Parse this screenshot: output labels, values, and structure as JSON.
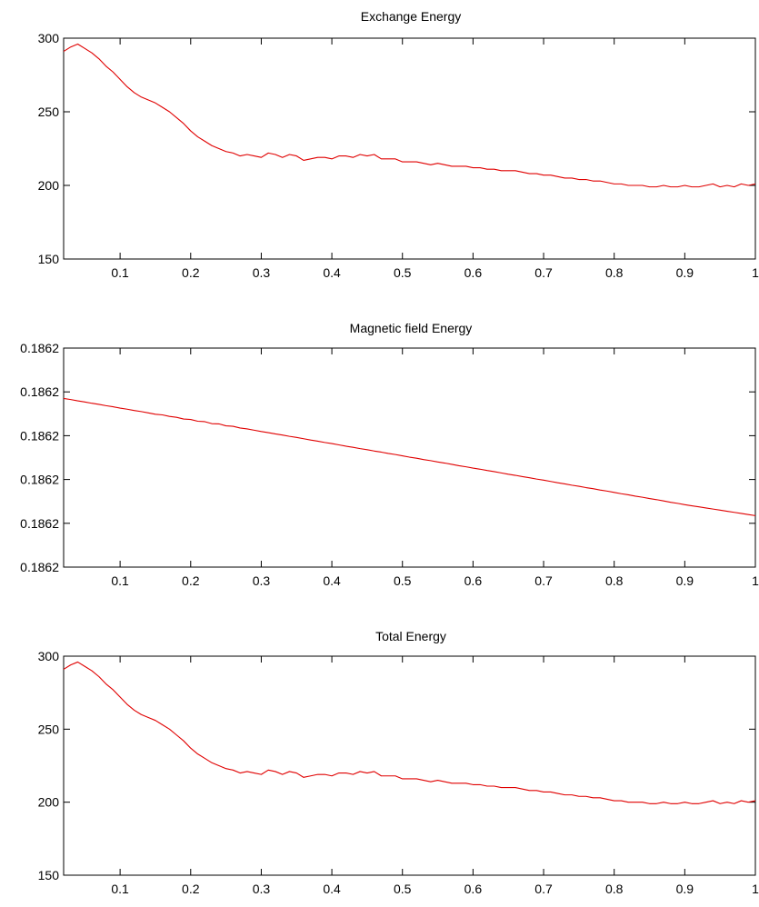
{
  "figure": {
    "line_color": "#e00000",
    "background": "#ffffff"
  },
  "chart_data": [
    {
      "type": "line",
      "title": "Exchange Energy",
      "xlim": [
        0.02,
        1.0
      ],
      "ylim": [
        150,
        300
      ],
      "xticks": [
        0.1,
        0.2,
        0.3,
        0.4,
        0.5,
        0.6,
        0.7,
        0.8,
        0.9,
        1.0
      ],
      "xtick_labels": [
        "0.1",
        "0.2",
        "0.3",
        "0.4",
        "0.5",
        "0.6",
        "0.7",
        "0.8",
        "0.9",
        "1"
      ],
      "yticks": [
        150,
        200,
        250,
        300
      ],
      "ytick_labels": [
        "150",
        "200",
        "250",
        "300"
      ],
      "grid": false,
      "series": [
        {
          "color": "#e00000",
          "x": [
            0.02,
            0.03,
            0.04,
            0.05,
            0.06,
            0.07,
            0.08,
            0.09,
            0.1,
            0.11,
            0.12,
            0.13,
            0.14,
            0.15,
            0.16,
            0.17,
            0.18,
            0.19,
            0.2,
            0.21,
            0.22,
            0.23,
            0.24,
            0.25,
            0.26,
            0.27,
            0.28,
            0.29,
            0.3,
            0.31,
            0.32,
            0.33,
            0.34,
            0.35,
            0.36,
            0.37,
            0.38,
            0.39,
            0.4,
            0.41,
            0.42,
            0.43,
            0.44,
            0.45,
            0.46,
            0.47,
            0.48,
            0.49,
            0.5,
            0.51,
            0.52,
            0.53,
            0.54,
            0.55,
            0.56,
            0.57,
            0.58,
            0.59,
            0.6,
            0.61,
            0.62,
            0.63,
            0.64,
            0.65,
            0.66,
            0.67,
            0.68,
            0.69,
            0.7,
            0.71,
            0.72,
            0.73,
            0.74,
            0.75,
            0.76,
            0.77,
            0.78,
            0.79,
            0.8,
            0.81,
            0.82,
            0.83,
            0.84,
            0.85,
            0.86,
            0.87,
            0.88,
            0.89,
            0.9,
            0.91,
            0.92,
            0.93,
            0.94,
            0.95,
            0.96,
            0.97,
            0.98,
            0.99,
            1.0
          ],
          "y": [
            291,
            294,
            296,
            293,
            290,
            286,
            281,
            277,
            272,
            267,
            263,
            260,
            258,
            256,
            253,
            250,
            246,
            242,
            237,
            233,
            230,
            227,
            225,
            223,
            222,
            220,
            221,
            220,
            219,
            222,
            221,
            219,
            221,
            220,
            217,
            218,
            219,
            219,
            218,
            220,
            220,
            219,
            221,
            220,
            221,
            218,
            218,
            218,
            216,
            216,
            216,
            215,
            214,
            215,
            214,
            213,
            213,
            213,
            212,
            212,
            211,
            211,
            210,
            210,
            210,
            209,
            208,
            208,
            207,
            207,
            206,
            205,
            205,
            204,
            204,
            203,
            203,
            202,
            201,
            201,
            200,
            200,
            200,
            199,
            199,
            200,
            199,
            199,
            200,
            199,
            199,
            200,
            201,
            199,
            200,
            199,
            201,
            200,
            201
          ]
        }
      ]
    },
    {
      "type": "line",
      "title": "Magnetic field Energy",
      "xlim": [
        0.02,
        1.0
      ],
      "ylim": [
        0,
        1
      ],
      "xticks": [
        0.1,
        0.2,
        0.3,
        0.4,
        0.5,
        0.6,
        0.7,
        0.8,
        0.9,
        1.0
      ],
      "xtick_labels": [
        "0.1",
        "0.2",
        "0.3",
        "0.4",
        "0.5",
        "0.6",
        "0.7",
        "0.8",
        "0.9",
        "1"
      ],
      "yticks": [
        0,
        0.2,
        0.4,
        0.6,
        0.8,
        1.0
      ],
      "ytick_labels": [
        "0.1862",
        "0.1862",
        "0.1862",
        "0.1862",
        "0.1862",
        "0.1862"
      ],
      "grid": false,
      "series": [
        {
          "color": "#e00000",
          "x": [
            0.02,
            0.03,
            0.04,
            0.05,
            0.06,
            0.07,
            0.08,
            0.09,
            0.1,
            0.11,
            0.12,
            0.13,
            0.14,
            0.15,
            0.16,
            0.17,
            0.18,
            0.19,
            0.2,
            0.21,
            0.22,
            0.23,
            0.24,
            0.25,
            0.26,
            0.27,
            0.28,
            0.29,
            0.3,
            0.31,
            0.32,
            0.33,
            0.34,
            0.35,
            0.36,
            0.37,
            0.38,
            0.39,
            0.4,
            0.41,
            0.42,
            0.43,
            0.44,
            0.45,
            0.46,
            0.47,
            0.48,
            0.49,
            0.5,
            0.51,
            0.52,
            0.53,
            0.54,
            0.55,
            0.56,
            0.57,
            0.58,
            0.59,
            0.6,
            0.61,
            0.62,
            0.63,
            0.64,
            0.65,
            0.66,
            0.67,
            0.68,
            0.69,
            0.7,
            0.71,
            0.72,
            0.73,
            0.74,
            0.75,
            0.76,
            0.77,
            0.78,
            0.79,
            0.8,
            0.81,
            0.82,
            0.83,
            0.84,
            0.85,
            0.86,
            0.87,
            0.88,
            0.89,
            0.9,
            0.91,
            0.92,
            0.93,
            0.94,
            0.95,
            0.96,
            0.97,
            0.98,
            0.99,
            1.0
          ],
          "y": [
            0.77,
            0.765,
            0.759,
            0.754,
            0.748,
            0.743,
            0.737,
            0.732,
            0.726,
            0.721,
            0.715,
            0.71,
            0.704,
            0.698,
            0.695,
            0.688,
            0.684,
            0.676,
            0.674,
            0.666,
            0.664,
            0.655,
            0.654,
            0.645,
            0.643,
            0.635,
            0.631,
            0.625,
            0.619,
            0.614,
            0.608,
            0.603,
            0.597,
            0.592,
            0.586,
            0.58,
            0.575,
            0.569,
            0.564,
            0.558,
            0.552,
            0.547,
            0.541,
            0.536,
            0.53,
            0.525,
            0.519,
            0.514,
            0.508,
            0.502,
            0.497,
            0.491,
            0.486,
            0.48,
            0.475,
            0.469,
            0.463,
            0.458,
            0.452,
            0.447,
            0.441,
            0.436,
            0.43,
            0.424,
            0.419,
            0.413,
            0.408,
            0.402,
            0.397,
            0.391,
            0.385,
            0.38,
            0.374,
            0.369,
            0.363,
            0.358,
            0.352,
            0.347,
            0.341,
            0.335,
            0.33,
            0.324,
            0.319,
            0.313,
            0.308,
            0.302,
            0.296,
            0.291,
            0.285,
            0.28,
            0.275,
            0.27,
            0.265,
            0.26,
            0.255,
            0.25,
            0.245,
            0.24,
            0.235
          ]
        }
      ]
    },
    {
      "type": "line",
      "title": "Total Energy",
      "xlim": [
        0.02,
        1.0
      ],
      "ylim": [
        150,
        300
      ],
      "xticks": [
        0.1,
        0.2,
        0.3,
        0.4,
        0.5,
        0.6,
        0.7,
        0.8,
        0.9,
        1.0
      ],
      "xtick_labels": [
        "0.1",
        "0.2",
        "0.3",
        "0.4",
        "0.5",
        "0.6",
        "0.7",
        "0.8",
        "0.9",
        "1"
      ],
      "yticks": [
        150,
        200,
        250,
        300
      ],
      "ytick_labels": [
        "150",
        "200",
        "250",
        "300"
      ],
      "grid": false,
      "series": [
        {
          "color": "#e00000",
          "x": [
            0.02,
            0.03,
            0.04,
            0.05,
            0.06,
            0.07,
            0.08,
            0.09,
            0.1,
            0.11,
            0.12,
            0.13,
            0.14,
            0.15,
            0.16,
            0.17,
            0.18,
            0.19,
            0.2,
            0.21,
            0.22,
            0.23,
            0.24,
            0.25,
            0.26,
            0.27,
            0.28,
            0.29,
            0.3,
            0.31,
            0.32,
            0.33,
            0.34,
            0.35,
            0.36,
            0.37,
            0.38,
            0.39,
            0.4,
            0.41,
            0.42,
            0.43,
            0.44,
            0.45,
            0.46,
            0.47,
            0.48,
            0.49,
            0.5,
            0.51,
            0.52,
            0.53,
            0.54,
            0.55,
            0.56,
            0.57,
            0.58,
            0.59,
            0.6,
            0.61,
            0.62,
            0.63,
            0.64,
            0.65,
            0.66,
            0.67,
            0.68,
            0.69,
            0.7,
            0.71,
            0.72,
            0.73,
            0.74,
            0.75,
            0.76,
            0.77,
            0.78,
            0.79,
            0.8,
            0.81,
            0.82,
            0.83,
            0.84,
            0.85,
            0.86,
            0.87,
            0.88,
            0.89,
            0.9,
            0.91,
            0.92,
            0.93,
            0.94,
            0.95,
            0.96,
            0.97,
            0.98,
            0.99,
            1.0
          ],
          "y": [
            291,
            294,
            296,
            293,
            290,
            286,
            281,
            277,
            272,
            267,
            263,
            260,
            258,
            256,
            253,
            250,
            246,
            242,
            237,
            233,
            230,
            227,
            225,
            223,
            222,
            220,
            221,
            220,
            219,
            222,
            221,
            219,
            221,
            220,
            217,
            218,
            219,
            219,
            218,
            220,
            220,
            219,
            221,
            220,
            221,
            218,
            218,
            218,
            216,
            216,
            216,
            215,
            214,
            215,
            214,
            213,
            213,
            213,
            212,
            212,
            211,
            211,
            210,
            210,
            210,
            209,
            208,
            208,
            207,
            207,
            206,
            205,
            205,
            204,
            204,
            203,
            203,
            202,
            201,
            201,
            200,
            200,
            200,
            199,
            199,
            200,
            199,
            199,
            200,
            199,
            199,
            200,
            201,
            199,
            200,
            199,
            201,
            200,
            201
          ]
        }
      ]
    }
  ]
}
